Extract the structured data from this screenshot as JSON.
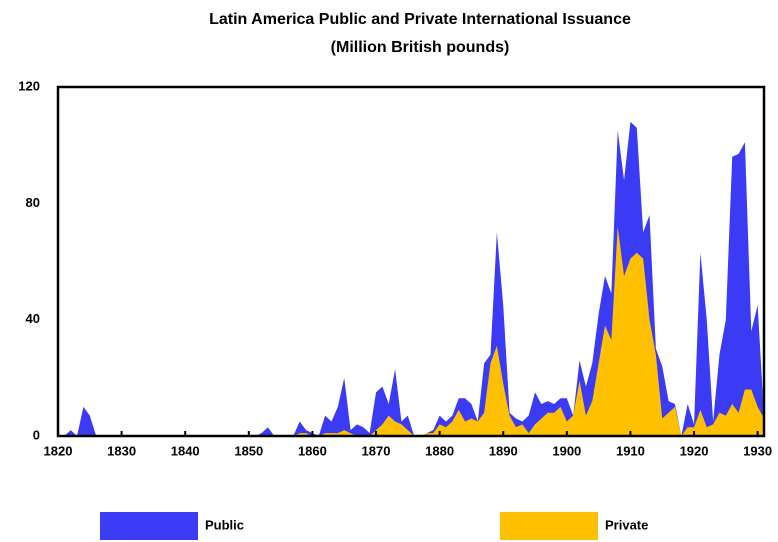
{
  "chart_data": {
    "type": "area",
    "title": "Latin America Public and Private International Issuance",
    "subtitle": "(Million British pounds)",
    "x": [
      1820,
      1821,
      1822,
      1823,
      1824,
      1825,
      1826,
      1827,
      1828,
      1829,
      1830,
      1831,
      1832,
      1833,
      1834,
      1835,
      1836,
      1837,
      1838,
      1839,
      1840,
      1841,
      1842,
      1843,
      1844,
      1845,
      1846,
      1847,
      1848,
      1849,
      1850,
      1851,
      1852,
      1853,
      1854,
      1855,
      1856,
      1857,
      1858,
      1859,
      1860,
      1861,
      1862,
      1863,
      1864,
      1865,
      1866,
      1867,
      1868,
      1869,
      1870,
      1871,
      1872,
      1873,
      1874,
      1875,
      1876,
      1877,
      1878,
      1879,
      1880,
      1881,
      1882,
      1883,
      1884,
      1885,
      1886,
      1887,
      1888,
      1889,
      1890,
      1891,
      1892,
      1893,
      1894,
      1895,
      1896,
      1897,
      1898,
      1899,
      1900,
      1901,
      1902,
      1903,
      1904,
      1905,
      1906,
      1907,
      1908,
      1909,
      1910,
      1911,
      1912,
      1913,
      1914,
      1915,
      1916,
      1917,
      1918,
      1919,
      1920,
      1921,
      1922,
      1923,
      1924,
      1925,
      1926,
      1927,
      1928,
      1929,
      1930,
      1931
    ],
    "series": [
      {
        "name": "Public",
        "color": "#3b3bf5",
        "values": [
          0,
          0,
          2,
          0,
          10,
          7,
          0,
          0,
          0,
          0,
          0,
          0,
          0,
          0,
          0,
          0,
          0,
          0,
          0,
          0,
          0,
          0,
          0,
          0,
          0,
          0,
          0,
          0,
          0,
          0,
          0,
          0,
          1,
          3,
          0,
          0,
          0,
          0,
          5,
          2,
          1,
          0,
          7,
          5,
          10,
          20,
          2,
          4,
          3,
          1,
          15,
          17,
          11,
          23,
          5,
          7,
          0,
          0,
          1,
          2,
          7,
          5,
          7,
          13,
          13,
          11,
          5,
          25,
          28,
          70,
          45,
          8,
          6,
          5,
          7,
          15,
          11,
          12,
          11,
          13,
          13,
          7,
          26,
          17,
          25,
          42,
          55,
          49,
          105,
          88,
          108,
          106,
          70,
          76,
          30,
          24,
          12,
          11,
          0,
          11,
          4,
          63,
          40,
          5,
          28,
          40,
          96,
          97,
          101,
          36,
          45,
          7
        ]
      },
      {
        "name": "Private",
        "color": "#ffc000",
        "values": [
          0,
          0,
          0,
          0,
          0,
          0,
          0,
          0,
          0,
          0,
          0,
          0,
          0,
          0,
          0,
          0,
          0,
          0,
          0,
          0,
          0,
          0,
          0,
          0,
          0,
          0,
          0,
          0,
          0,
          0,
          0,
          0,
          0,
          0,
          0,
          0,
          0,
          0,
          1,
          1,
          0,
          0,
          1,
          1,
          1,
          2,
          1,
          0,
          0,
          0,
          2,
          4,
          7,
          5,
          4,
          2,
          0,
          0,
          1,
          1,
          4,
          3,
          5,
          9,
          5,
          6,
          5,
          8,
          25,
          31,
          18,
          7,
          3,
          4,
          1,
          4,
          6,
          8,
          8,
          10,
          5,
          7,
          19,
          7,
          12,
          25,
          38,
          33,
          72,
          55,
          61,
          63,
          61,
          40,
          28,
          6,
          8,
          10,
          0,
          3,
          3,
          9,
          3,
          4,
          8,
          7,
          11,
          8,
          16,
          16,
          10,
          6
        ]
      }
    ],
    "xlim": [
      1820,
      1931
    ],
    "xticks": [
      1820,
      1830,
      1840,
      1850,
      1860,
      1870,
      1880,
      1890,
      1900,
      1910,
      1920,
      1930
    ],
    "ylim": [
      0,
      120
    ],
    "yticks": [
      0,
      40,
      80,
      120
    ]
  }
}
